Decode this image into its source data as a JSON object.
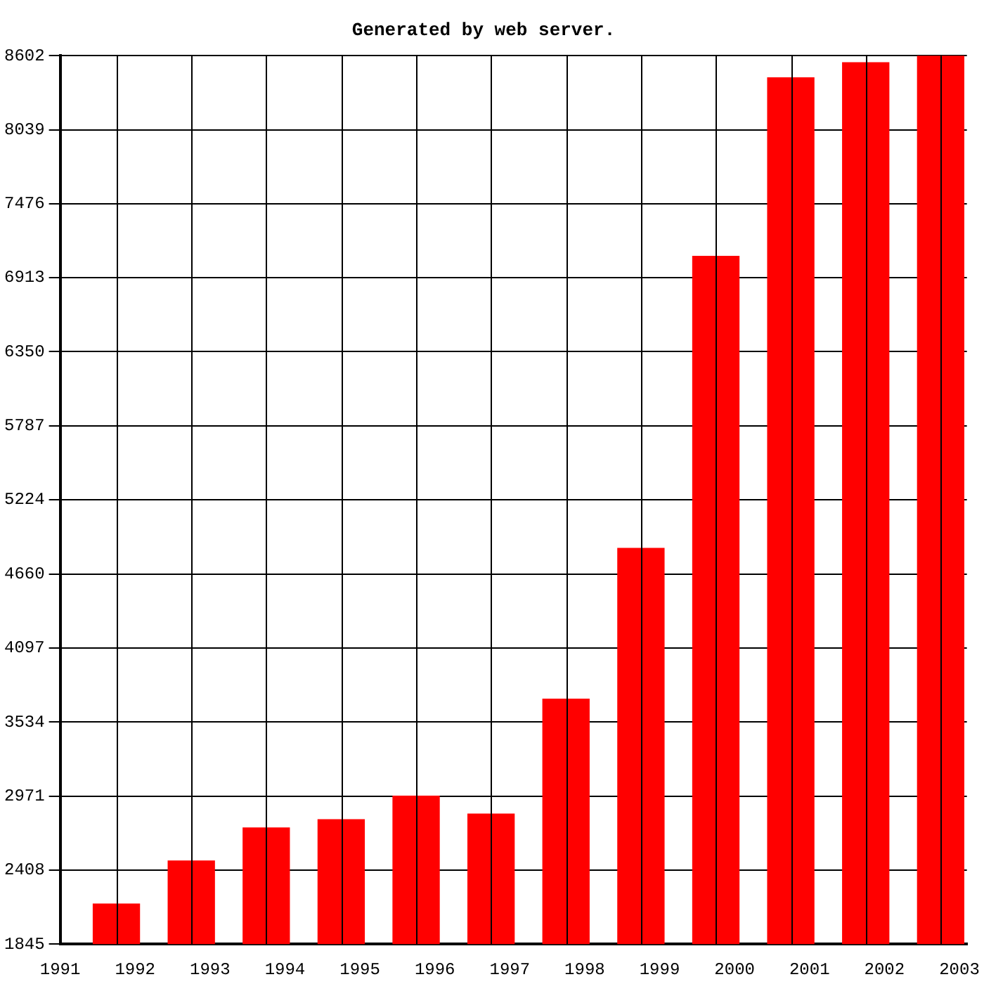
{
  "chart_data": {
    "type": "bar",
    "title": "Generated by web server.",
    "x": [
      1991.75,
      1992.75,
      1993.75,
      1994.75,
      1995.75,
      1996.75,
      1997.75,
      1998.75,
      1999.75,
      2000.75,
      2001.75,
      2002.75
    ],
    "values": [
      2150,
      2477,
      2729,
      2792,
      2971,
      2834,
      3708,
      4855,
      7076,
      8434,
      8549,
      8602
    ],
    "color": "#ff0000",
    "xlim": [
      1991,
      2003.1
    ],
    "xticks": [
      1991,
      1992,
      1993,
      1994,
      1995,
      1996,
      1997,
      1998,
      1999,
      2000,
      2001,
      2002,
      2003
    ],
    "ylim": [
      1845,
      8602
    ],
    "yticks": [
      1845,
      2408,
      2971,
      3534,
      4097,
      4660,
      5224,
      5787,
      6350,
      6913,
      7476,
      8039,
      8602
    ],
    "grid": true,
    "legend": false
  }
}
